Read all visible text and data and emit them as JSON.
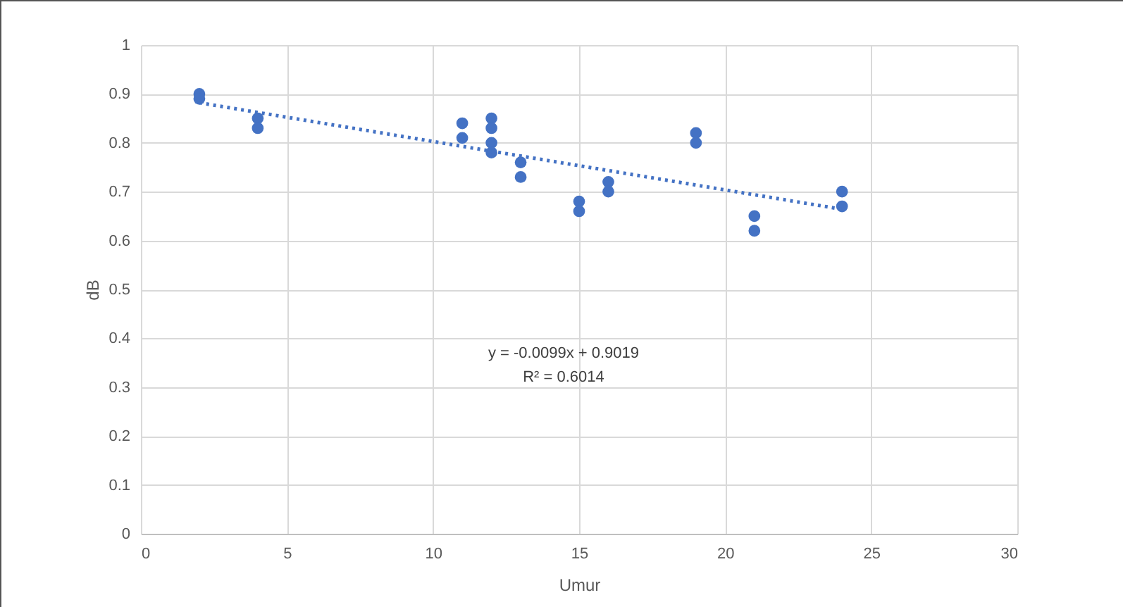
{
  "chart_data": {
    "type": "scatter",
    "xlabel": "Umur",
    "ylabel": "dB",
    "xlim": [
      0,
      30
    ],
    "ylim": [
      0,
      1
    ],
    "xticks": [
      0,
      5,
      10,
      15,
      20,
      25,
      30
    ],
    "yticks": [
      0,
      0.1,
      0.2,
      0.3,
      0.4,
      0.5,
      0.6,
      0.7,
      0.8,
      0.9,
      1
    ],
    "grid": true,
    "marker": "circle",
    "series": [
      {
        "color": "#4472c4",
        "x": [
          2,
          2,
          4,
          4,
          11,
          11,
          12,
          12,
          12,
          12,
          13,
          13,
          15,
          15,
          16,
          16,
          19,
          19,
          21,
          21,
          24,
          24
        ],
        "values": [
          0.9,
          0.89,
          0.85,
          0.83,
          0.84,
          0.81,
          0.85,
          0.83,
          0.8,
          0.78,
          0.76,
          0.73,
          0.68,
          0.66,
          0.72,
          0.7,
          0.82,
          0.8,
          0.65,
          0.62,
          0.7,
          0.67
        ]
      },
      {
        "type": "line",
        "color": "#4472c4",
        "line_style": "dotted",
        "marker": "none",
        "x": [
          2,
          24
        ],
        "values": [
          0.882,
          0.664
        ]
      }
    ],
    "annotations": [
      "y = -0.0099x + 0.9019",
      "R² = 0.6014"
    ]
  }
}
